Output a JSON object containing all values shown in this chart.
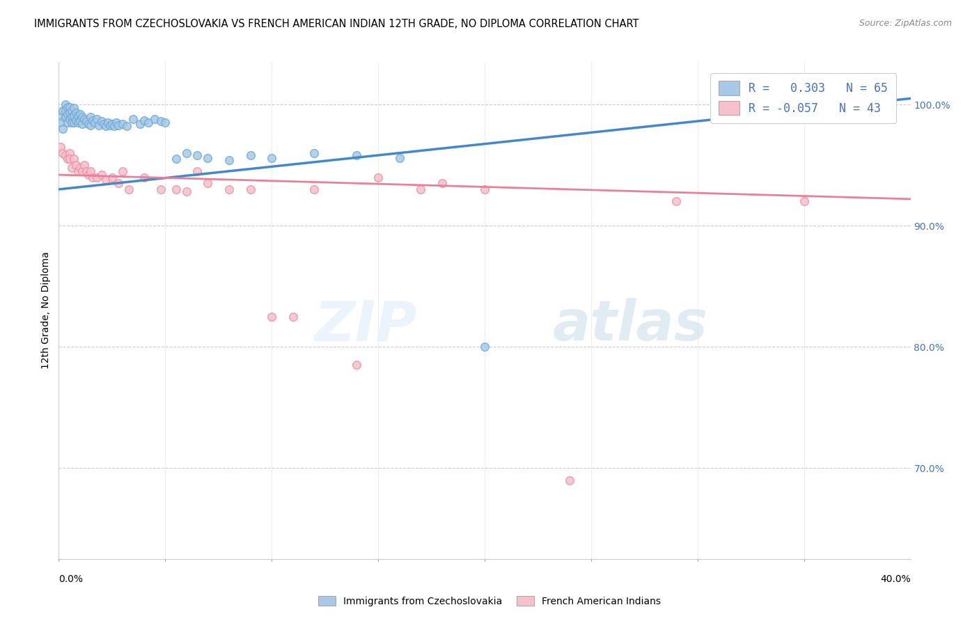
{
  "title": "IMMIGRANTS FROM CZECHOSLOVAKIA VS FRENCH AMERICAN INDIAN 12TH GRADE, NO DIPLOMA CORRELATION CHART",
  "source": "Source: ZipAtlas.com",
  "ylabel": "12th Grade, No Diploma",
  "legend_blue_label": "Immigrants from Czechoslovakia",
  "legend_pink_label": "French American Indians",
  "R_blue": 0.303,
  "N_blue": 65,
  "R_pink": -0.057,
  "N_pink": 43,
  "blue_color": "#a8c8e8",
  "blue_edge_color": "#6aaad4",
  "blue_line_color": "#4488cc",
  "pink_color": "#f8c0cc",
  "pink_edge_color": "#e890a8",
  "pink_line_color": "#e88098",
  "bg_color": "#ffffff",
  "grid_color": "#cccccc",
  "right_tick_color": "#4472C4",
  "xmin": 0.0,
  "xmax": 0.4,
  "ymin": 0.625,
  "ymax": 1.035,
  "right_yticks": [
    1.0,
    0.9,
    0.8,
    0.7
  ],
  "right_yticklabels": [
    "100.0%",
    "90.0%",
    "80.0%",
    "70.0%"
  ],
  "blue_line_x0": 0.0,
  "blue_line_y0": 0.93,
  "blue_line_x1": 0.4,
  "blue_line_y1": 1.005,
  "pink_line_x0": 0.0,
  "pink_line_y0": 0.942,
  "pink_line_x1": 0.4,
  "pink_line_y1": 0.922,
  "blue_x": [
    0.001,
    0.001,
    0.002,
    0.002,
    0.003,
    0.003,
    0.003,
    0.004,
    0.004,
    0.004,
    0.005,
    0.005,
    0.005,
    0.006,
    0.006,
    0.006,
    0.007,
    0.007,
    0.007,
    0.008,
    0.008,
    0.009,
    0.009,
    0.01,
    0.01,
    0.011,
    0.011,
    0.012,
    0.013,
    0.014,
    0.015,
    0.015,
    0.016,
    0.017,
    0.018,
    0.019,
    0.02,
    0.021,
    0.022,
    0.023,
    0.024,
    0.025,
    0.026,
    0.027,
    0.028,
    0.03,
    0.032,
    0.035,
    0.038,
    0.04,
    0.042,
    0.045,
    0.048,
    0.05,
    0.055,
    0.06,
    0.065,
    0.07,
    0.08,
    0.09,
    0.1,
    0.12,
    0.14,
    0.16,
    0.2
  ],
  "blue_y": [
    0.99,
    0.985,
    0.995,
    0.98,
    1.0,
    0.995,
    0.99,
    0.998,
    0.992,
    0.985,
    0.998,
    0.993,
    0.988,
    0.995,
    0.99,
    0.985,
    0.997,
    0.991,
    0.985,
    0.993,
    0.987,
    0.991,
    0.985,
    0.992,
    0.986,
    0.99,
    0.984,
    0.988,
    0.986,
    0.984,
    0.99,
    0.983,
    0.987,
    0.985,
    0.988,
    0.983,
    0.986,
    0.984,
    0.982,
    0.985,
    0.983,
    0.984,
    0.982,
    0.985,
    0.983,
    0.984,
    0.982,
    0.988,
    0.984,
    0.987,
    0.985,
    0.988,
    0.986,
    0.985,
    0.955,
    0.96,
    0.958,
    0.956,
    0.954,
    0.958,
    0.956,
    0.96,
    0.958,
    0.956,
    0.8
  ],
  "pink_x": [
    0.001,
    0.002,
    0.003,
    0.004,
    0.005,
    0.005,
    0.006,
    0.007,
    0.008,
    0.009,
    0.01,
    0.011,
    0.012,
    0.013,
    0.014,
    0.015,
    0.016,
    0.018,
    0.02,
    0.022,
    0.025,
    0.028,
    0.03,
    0.033,
    0.04,
    0.048,
    0.055,
    0.06,
    0.065,
    0.07,
    0.08,
    0.09,
    0.1,
    0.11,
    0.12,
    0.14,
    0.15,
    0.17,
    0.2,
    0.24,
    0.18,
    0.29,
    0.35
  ],
  "pink_y": [
    0.965,
    0.96,
    0.958,
    0.955,
    0.96,
    0.955,
    0.948,
    0.955,
    0.95,
    0.945,
    0.948,
    0.945,
    0.95,
    0.945,
    0.942,
    0.945,
    0.94,
    0.94,
    0.942,
    0.938,
    0.94,
    0.935,
    0.945,
    0.93,
    0.94,
    0.93,
    0.93,
    0.928,
    0.945,
    0.935,
    0.93,
    0.93,
    0.825,
    0.825,
    0.93,
    0.785,
    0.94,
    0.93,
    0.93,
    0.69,
    0.935,
    0.92,
    0.92
  ]
}
